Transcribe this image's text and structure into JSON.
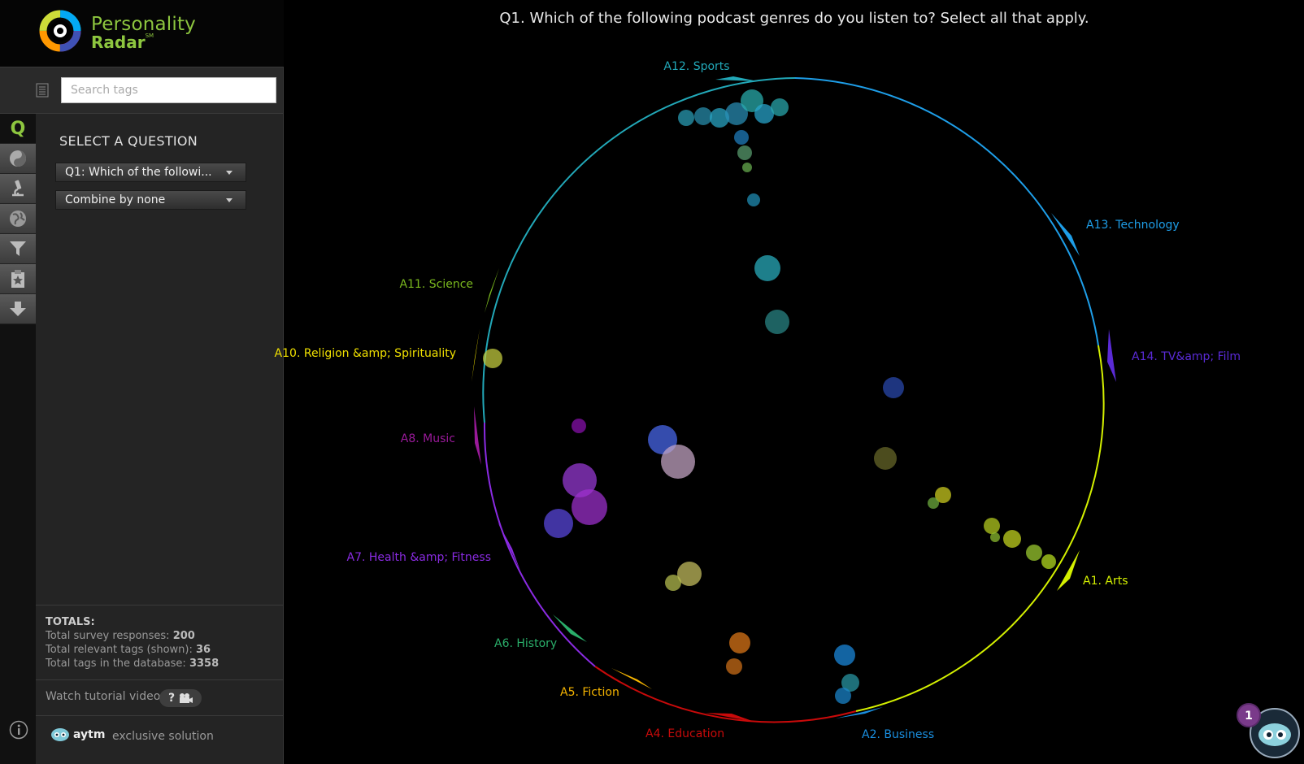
{
  "app": {
    "logo_line1": "Personality",
    "logo_line2": "Radar",
    "logo_sm": "SM"
  },
  "search": {
    "placeholder": "Search tags"
  },
  "tools": [
    {
      "icon": "q-icon",
      "label": "Q"
    },
    {
      "icon": "yin-yang-icon"
    },
    {
      "icon": "microscope-icon"
    },
    {
      "icon": "globe-icon"
    },
    {
      "icon": "filter-icon"
    },
    {
      "icon": "clipboard-star-icon"
    },
    {
      "icon": "download-icon"
    }
  ],
  "panel": {
    "title": "SELECT A QUESTION",
    "question_select": "Q1: Which of the followi...",
    "combine_select": "Combine by none"
  },
  "totals": {
    "header": "TOTALS:",
    "responses_label": "Total survey responses:",
    "responses_value": "200",
    "relevant_label": "Total relevant tags (shown):",
    "relevant_value": "36",
    "database_label": "Total tags in the database:",
    "database_value": "3358"
  },
  "tutorial": {
    "label": "Watch tutorial video",
    "btn": "?"
  },
  "brand": {
    "name": "aytm",
    "tagline": "exclusive solution"
  },
  "question_title": "Q1. Which of the following podcast genres do you listen to? Select all that apply.",
  "chat": {
    "badge": "1"
  },
  "chart_data": {
    "type": "scatter",
    "answers": [
      {
        "label": "A1. Arts",
        "color": "#d4f000"
      },
      {
        "label": "A2. Business",
        "color": "#1a8fe0"
      },
      {
        "label": "A4. Education",
        "color": "#c80a0a"
      },
      {
        "label": "A5. Fiction",
        "color": "#f5b400"
      },
      {
        "label": "A6. History",
        "color": "#2aae6a"
      },
      {
        "label": "A7. Health &amp; Fitness",
        "color": "#8a2be2"
      },
      {
        "label": "A8. Music",
        "color": "#9a1a9a"
      },
      {
        "label": "A10. Religion &amp; Spirituality",
        "color": "#f0e000"
      },
      {
        "label": "A11. Science",
        "color": "#7ab81e"
      },
      {
        "label": "A12. Sports",
        "color": "#22a8b8"
      },
      {
        "label": "A13. Technology",
        "color": "#1e9ee8"
      },
      {
        "label": "A14. TV&amp; Film",
        "color": "#5a2ad6"
      }
    ],
    "tags_shown": 36
  }
}
